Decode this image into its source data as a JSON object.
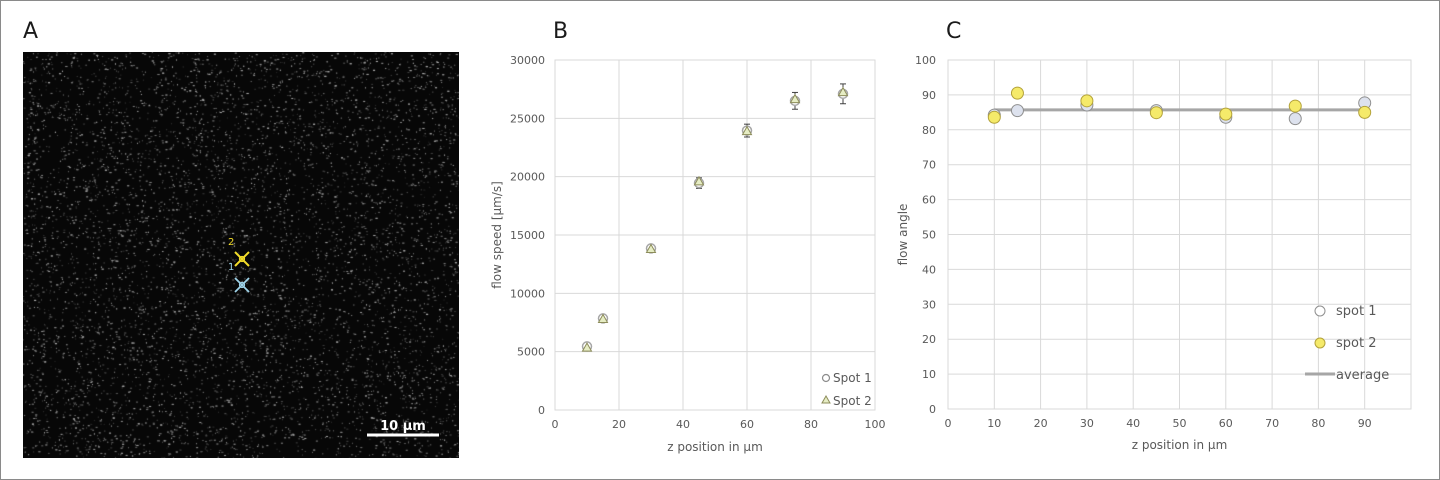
{
  "panels": {
    "a": "A",
    "b": "B",
    "c": "C"
  },
  "image_panel": {
    "scale_bar_label": "10 µm",
    "spot_labels": [
      "1",
      "2"
    ],
    "marker_colors": {
      "spot1": "#9fd4ea",
      "spot2": "#f2dc2a"
    }
  },
  "chart_data": [
    {
      "type": "scatter",
      "title": "",
      "xlabel": "z position in µm",
      "ylabel": "flow speed [µm/s]",
      "xlim": [
        0,
        100
      ],
      "ylim": [
        0,
        30000
      ],
      "xticks": [
        "0",
        "20",
        "40",
        "60",
        "80",
        "100"
      ],
      "yticks": [
        "0",
        "5000",
        "10000",
        "15000",
        "20000",
        "25000",
        "30000"
      ],
      "grid": true,
      "legend_position": "bottom-right",
      "series": [
        {
          "name": "Spot 1",
          "marker": "circle",
          "color": "#a6a6a6",
          "x": [
            10,
            15,
            30,
            45,
            60,
            75,
            90
          ],
          "y": [
            5450,
            7850,
            13850,
            19450,
            23950,
            26500,
            27100
          ],
          "err": [
            220,
            220,
            250,
            450,
            550,
            720,
            850
          ]
        },
        {
          "name": "Spot 2",
          "marker": "triangle",
          "color": "#c9d38a",
          "x": [
            10,
            15,
            30,
            45,
            60,
            75,
            90
          ],
          "y": [
            5350,
            7800,
            13800,
            19600,
            23900,
            26650,
            27250
          ],
          "err": [
            200,
            200,
            230,
            420,
            520,
            700,
            820
          ]
        }
      ]
    },
    {
      "type": "scatter",
      "title": "",
      "xlabel": "z position in µm",
      "ylabel": "flow angle",
      "xlim": [
        0,
        100
      ],
      "ylim": [
        0,
        100
      ],
      "xticks": [
        "0",
        "10",
        "20",
        "30",
        "40",
        "50",
        "60",
        "70",
        "80",
        "90"
      ],
      "yticks": [
        "0",
        "10",
        "20",
        "30",
        "40",
        "50",
        "60",
        "70",
        "80",
        "90",
        "100"
      ],
      "grid": true,
      "legend_position": "bottom-right",
      "series": [
        {
          "name": "spot 1",
          "marker": "circle",
          "color": "#dde2ee",
          "x": [
            10,
            15,
            30,
            45,
            60,
            75,
            90
          ],
          "y": [
            84.2,
            85.5,
            87.1,
            85.5,
            83.6,
            83.2,
            87.7
          ]
        },
        {
          "name": "spot 2",
          "marker": "circle",
          "color": "#f5ea6a",
          "x": [
            10,
            15,
            30,
            45,
            60,
            75,
            90
          ],
          "y": [
            83.6,
            90.5,
            88.3,
            84.9,
            84.5,
            86.8,
            85.0
          ]
        },
        {
          "name": "average",
          "marker": "line",
          "color": "#a6a6a6",
          "x": [
            10,
            90
          ],
          "y": [
            85.7,
            85.7
          ]
        }
      ]
    }
  ]
}
